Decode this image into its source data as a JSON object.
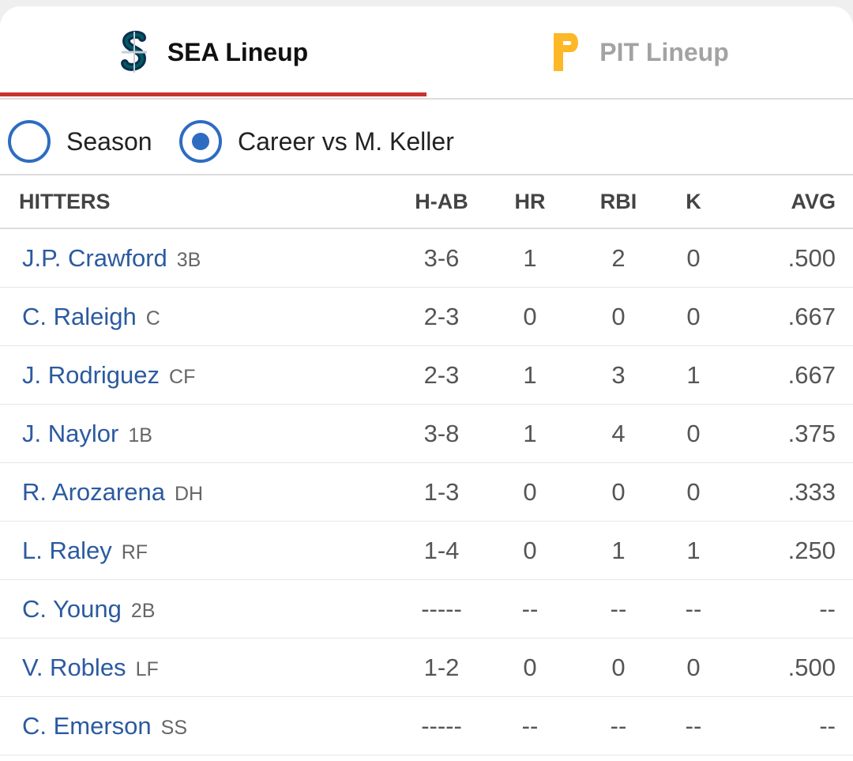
{
  "tabs": [
    {
      "label": "SEA Lineup",
      "active": true,
      "logo": "mariners-s-logo"
    },
    {
      "label": "PIT Lineup",
      "active": false,
      "logo": "pirates-p-logo"
    }
  ],
  "colors": {
    "accent_red": "#c8332d",
    "radio_blue": "#2e6cc2",
    "player_link": "#2b5aa0",
    "mariners_navy": "#0c2c56",
    "mariners_teal": "#005c5c",
    "pirates_gold": "#fdb827"
  },
  "filters": {
    "season_label": "Season",
    "career_label": "Career vs M. Keller",
    "selected": "career"
  },
  "table": {
    "headers": {
      "hitters": "HITTERS",
      "hab": "H-AB",
      "hr": "HR",
      "rbi": "RBI",
      "k": "K",
      "avg": "AVG"
    },
    "rows": [
      {
        "name": "J.P. Crawford",
        "pos": "3B",
        "hab": "3-6",
        "hr": "1",
        "rbi": "2",
        "k": "0",
        "avg": ".500"
      },
      {
        "name": "C. Raleigh",
        "pos": "C",
        "hab": "2-3",
        "hr": "0",
        "rbi": "0",
        "k": "0",
        "avg": ".667"
      },
      {
        "name": "J. Rodriguez",
        "pos": "CF",
        "hab": "2-3",
        "hr": "1",
        "rbi": "3",
        "k": "1",
        "avg": ".667"
      },
      {
        "name": "J. Naylor",
        "pos": "1B",
        "hab": "3-8",
        "hr": "1",
        "rbi": "4",
        "k": "0",
        "avg": ".375"
      },
      {
        "name": "R. Arozarena",
        "pos": "DH",
        "hab": "1-3",
        "hr": "0",
        "rbi": "0",
        "k": "0",
        "avg": ".333"
      },
      {
        "name": "L. Raley",
        "pos": "RF",
        "hab": "1-4",
        "hr": "0",
        "rbi": "1",
        "k": "1",
        "avg": ".250"
      },
      {
        "name": "C. Young",
        "pos": "2B",
        "hab": "-----",
        "hr": "--",
        "rbi": "--",
        "k": "--",
        "avg": "--"
      },
      {
        "name": "V. Robles",
        "pos": "LF",
        "hab": "1-2",
        "hr": "0",
        "rbi": "0",
        "k": "0",
        "avg": ".500"
      },
      {
        "name": "C. Emerson",
        "pos": "SS",
        "hab": "-----",
        "hr": "--",
        "rbi": "--",
        "k": "--",
        "avg": "--"
      }
    ]
  }
}
